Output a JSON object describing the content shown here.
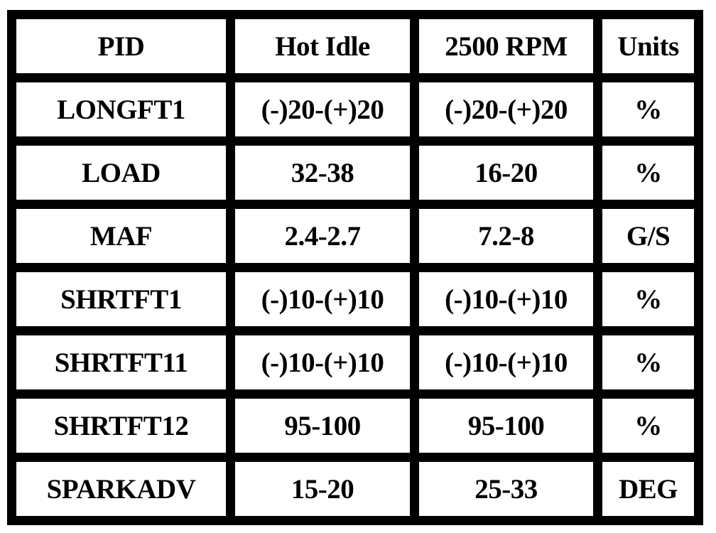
{
  "table": {
    "headers": [
      "PID",
      "Hot Idle",
      "2500 RPM",
      "Units"
    ],
    "rows": [
      [
        "LONGFT1",
        "(-)20-(+)20",
        "(-)20-(+)20",
        "%"
      ],
      [
        "LOAD",
        "32-38",
        "16-20",
        "%"
      ],
      [
        "MAF",
        "2.4-2.7",
        "7.2-8",
        "G/S"
      ],
      [
        "SHRTFT1",
        "(-)10-(+)10",
        "(-)10-(+)10",
        "%"
      ],
      [
        "SHRTFT11",
        "(-)10-(+)10",
        "(-)10-(+)10",
        "%"
      ],
      [
        "SHRTFT12",
        "95-100",
        "95-100",
        "%"
      ],
      [
        "SPARKADV",
        "15-20",
        "25-33",
        "DEG"
      ]
    ]
  }
}
